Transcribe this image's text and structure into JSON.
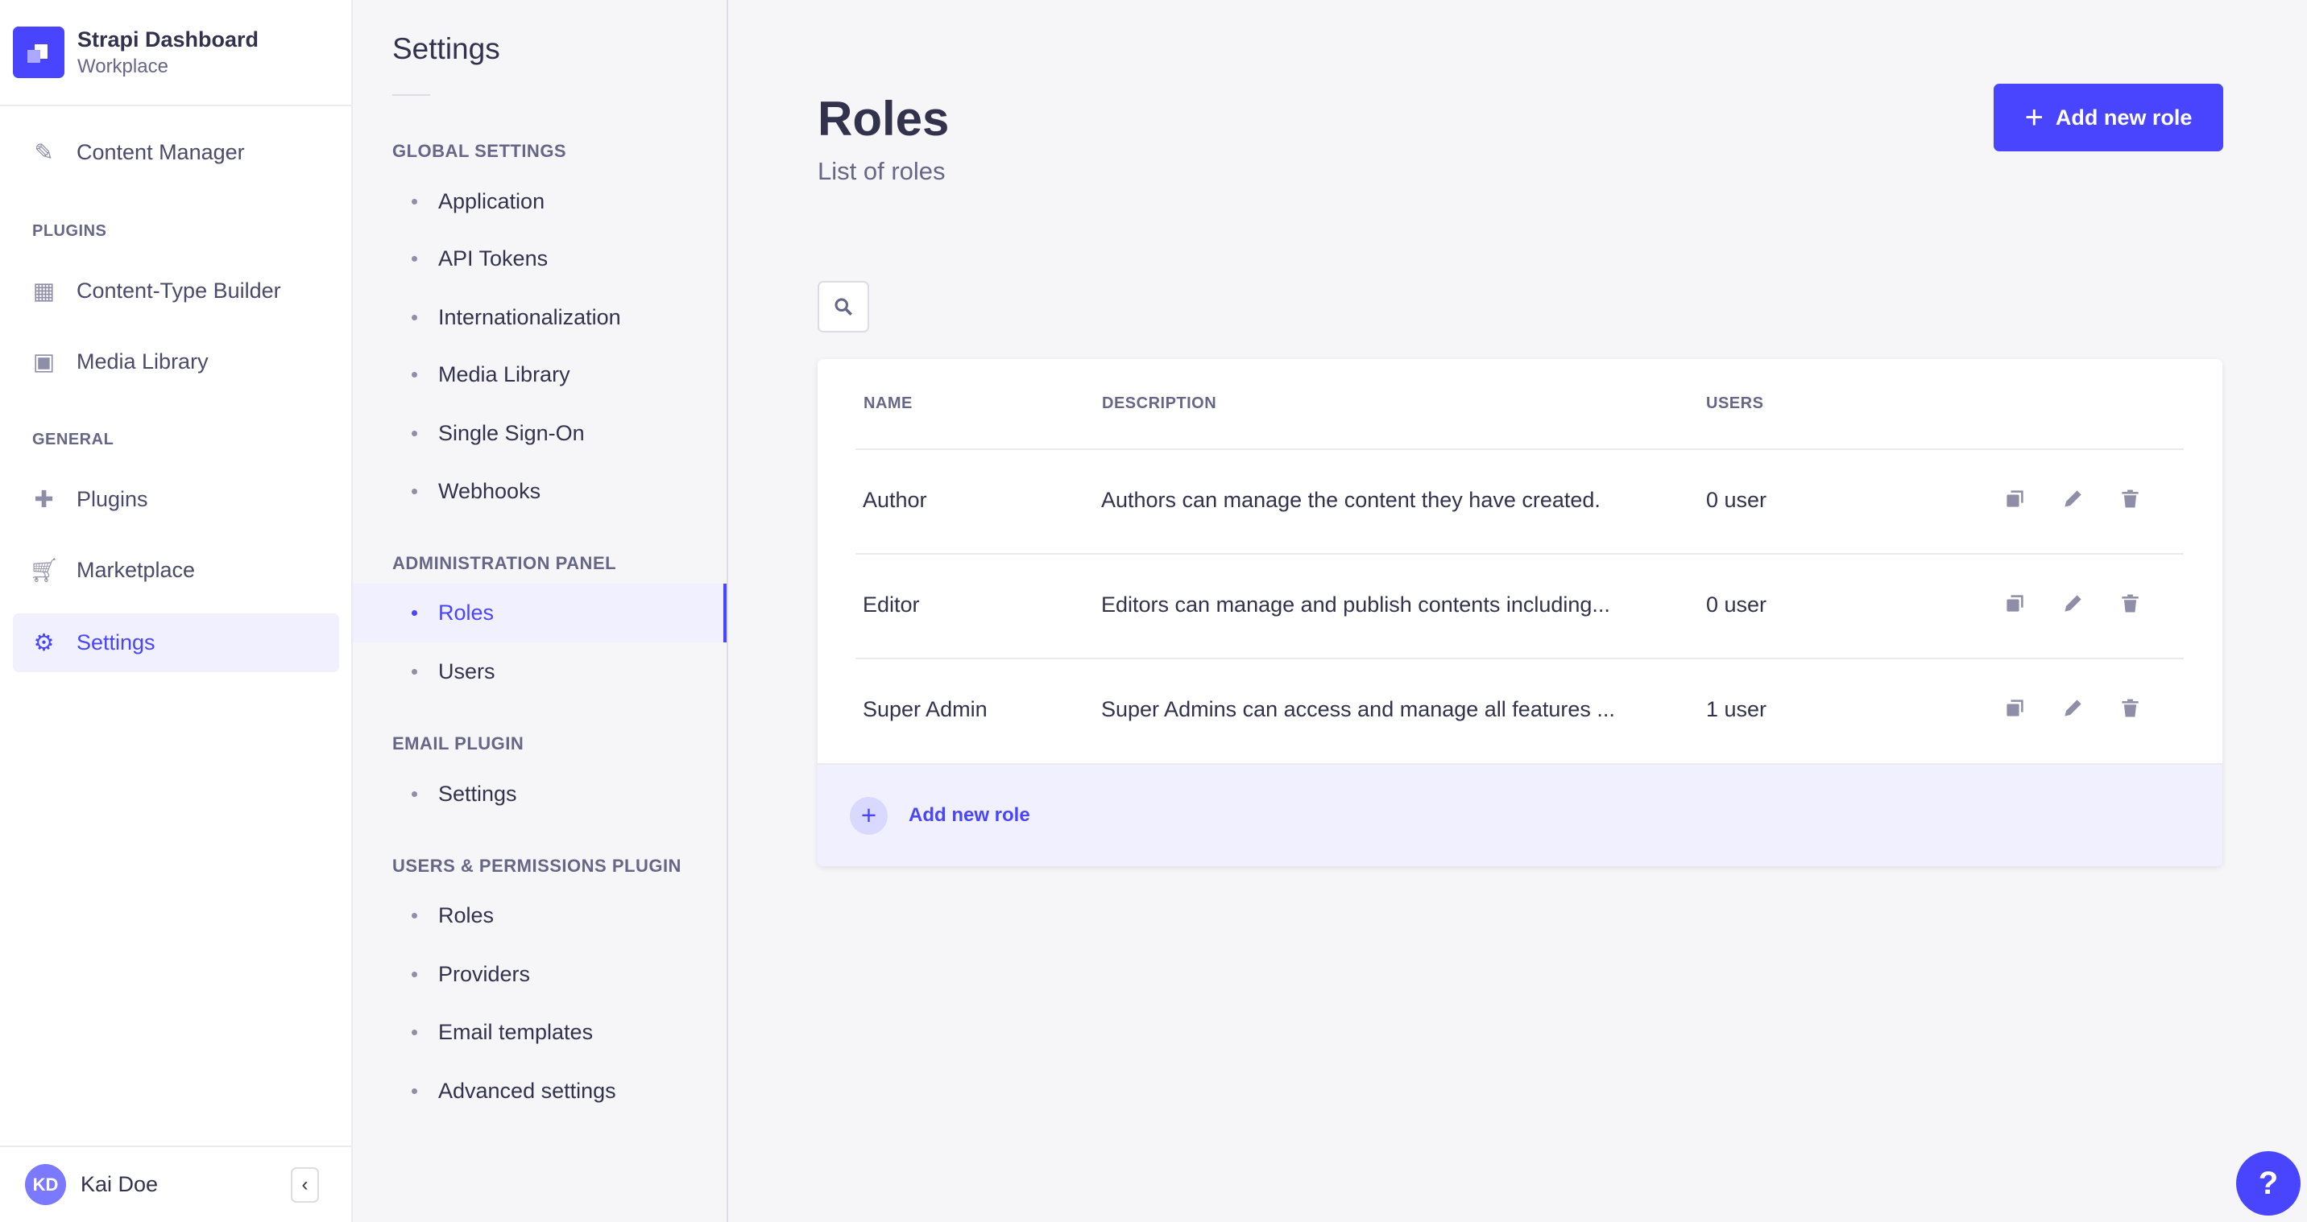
{
  "brand": {
    "title": "Strapi Dashboard",
    "subtitle": "Workplace"
  },
  "nav": {
    "content_manager": "Content Manager",
    "plugins_heading": "PLUGINS",
    "ctb": "Content-Type Builder",
    "media": "Media Library",
    "general_heading": "GENERAL",
    "plugins": "Plugins",
    "marketplace": "Marketplace",
    "settings": "Settings"
  },
  "user": {
    "initials": "KD",
    "name": "Kai Doe"
  },
  "settings": {
    "title": "Settings",
    "sections": [
      {
        "heading": "GLOBAL SETTINGS",
        "items": [
          "Application",
          "API Tokens",
          "Internationalization",
          "Media Library",
          "Single Sign-On",
          "Webhooks"
        ]
      },
      {
        "heading": "ADMINISTRATION PANEL",
        "items": [
          "Roles",
          "Users"
        ]
      },
      {
        "heading": "EMAIL PLUGIN",
        "items": [
          "Settings"
        ]
      },
      {
        "heading": "USERS & PERMISSIONS PLUGIN",
        "items": [
          "Roles",
          "Providers",
          "Email templates",
          "Advanced settings"
        ]
      }
    ]
  },
  "page": {
    "title": "Roles",
    "subtitle": "List of roles",
    "add_button": "Add new role"
  },
  "table": {
    "headers": [
      "NAME",
      "DESCRIPTION",
      "USERS"
    ],
    "rows": [
      {
        "name": "Author",
        "description": "Authors can manage the content they have created.",
        "users": "0 user"
      },
      {
        "name": "Editor",
        "description": "Editors can manage and publish contents including...",
        "users": "0 user"
      },
      {
        "name": "Super Admin",
        "description": "Super Admins can access and manage all features ...",
        "users": "1 user"
      }
    ],
    "footer_add": "Add new role"
  },
  "help": "?",
  "colors": {
    "accent": "#4945ff",
    "accent_light": "#f0f0ff",
    "icon": "#8e8ea9"
  }
}
